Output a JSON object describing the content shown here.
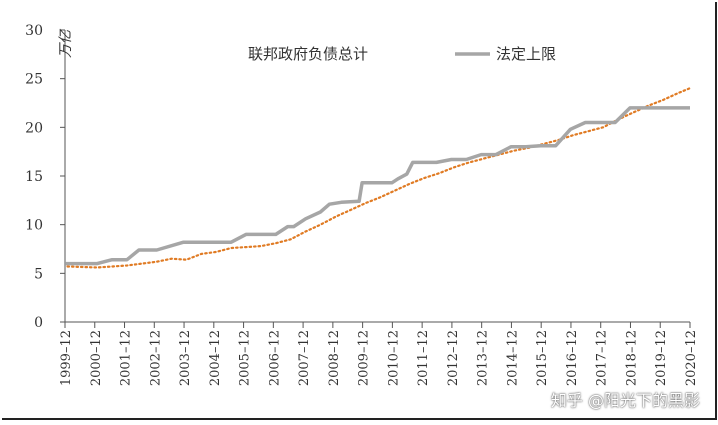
{
  "chart_data": {
    "type": "line",
    "unit_label": "万亿",
    "ylim": [
      0,
      30
    ],
    "yticks": [
      0,
      5,
      10,
      15,
      20,
      25,
      30
    ],
    "x_tick_labels": [
      "1999–12",
      "2000–12",
      "2001–12",
      "2002–12",
      "2003–12",
      "2004–12",
      "2005–12",
      "2006–12",
      "2007–12",
      "2008–12",
      "2009–12",
      "2010–12",
      "2011–12",
      "2012–12",
      "2013–12",
      "2014–12",
      "2015–12",
      "2016–12",
      "2017–12",
      "2018–12",
      "2019–12",
      "2020–12"
    ],
    "xlim": [
      1999.917,
      2020.917
    ],
    "grid": false,
    "legend_position": "top-center",
    "series": [
      {
        "name": "联邦政府负债总计",
        "style": "dotted",
        "color": "#E07B24",
        "x": [
          2000.0,
          2001.0,
          2002.0,
          2002.5,
          2003.0,
          2003.5,
          2004.0,
          2004.5,
          2005.0,
          2005.5,
          2006.0,
          2006.5,
          2007.0,
          2007.5,
          2008.0,
          2008.5,
          2009.0,
          2009.5,
          2010.0,
          2010.5,
          2011.0,
          2011.5,
          2012.0,
          2012.5,
          2013.0,
          2013.5,
          2014.0,
          2014.5,
          2015.0,
          2015.5,
          2016.0,
          2016.5,
          2017.0,
          2017.5,
          2018.0,
          2018.5,
          2019.0,
          2019.5,
          2020.0,
          2020.5,
          2020.9
        ],
        "y": [
          5.7,
          5.6,
          5.8,
          6.0,
          6.2,
          6.5,
          6.4,
          7.0,
          7.2,
          7.6,
          7.7,
          7.8,
          8.1,
          8.5,
          9.3,
          10.0,
          10.8,
          11.5,
          12.2,
          12.8,
          13.5,
          14.2,
          14.8,
          15.3,
          15.9,
          16.4,
          16.8,
          17.2,
          17.6,
          17.9,
          18.3,
          18.7,
          19.2,
          19.6,
          20.0,
          20.8,
          21.5,
          22.2,
          22.8,
          23.5,
          24.0
        ]
      },
      {
        "name": "法定上限",
        "style": "solid",
        "color": "#A6A6A6",
        "x": [
          1999.92,
          2001.0,
          2001.5,
          2002.0,
          2002.4,
          2003.0,
          2003.9,
          2004.0,
          2004.9,
          2005.0,
          2005.5,
          2006.0,
          2006.5,
          2007.0,
          2007.4,
          2007.6,
          2008.0,
          2008.5,
          2008.8,
          2009.2,
          2009.8,
          2009.9,
          2010.2,
          2010.5,
          2010.9,
          2011.1,
          2011.4,
          2011.6,
          2011.9,
          2012.4,
          2012.9,
          2013.4,
          2013.9,
          2014.4,
          2014.9,
          2015.4,
          2015.9,
          2016.4,
          2016.9,
          2017.4,
          2017.9,
          2018.4,
          2018.9,
          2019.4,
          2019.9,
          2020.5,
          2020.917
        ],
        "y": [
          6.0,
          6.0,
          6.4,
          6.4,
          7.4,
          7.4,
          8.2,
          8.2,
          8.2,
          8.2,
          8.2,
          9.0,
          9.0,
          9.0,
          9.8,
          9.8,
          10.6,
          11.3,
          12.1,
          12.3,
          12.4,
          14.3,
          14.3,
          14.3,
          14.3,
          14.7,
          15.2,
          16.4,
          16.4,
          16.4,
          16.7,
          16.7,
          17.2,
          17.2,
          18.0,
          18.0,
          18.1,
          18.1,
          19.8,
          20.5,
          20.5,
          20.5,
          22.0,
          22.0,
          22.0,
          22.0,
          22.0
        ]
      }
    ]
  },
  "watermark": "知乎 @阳光下的黑影"
}
